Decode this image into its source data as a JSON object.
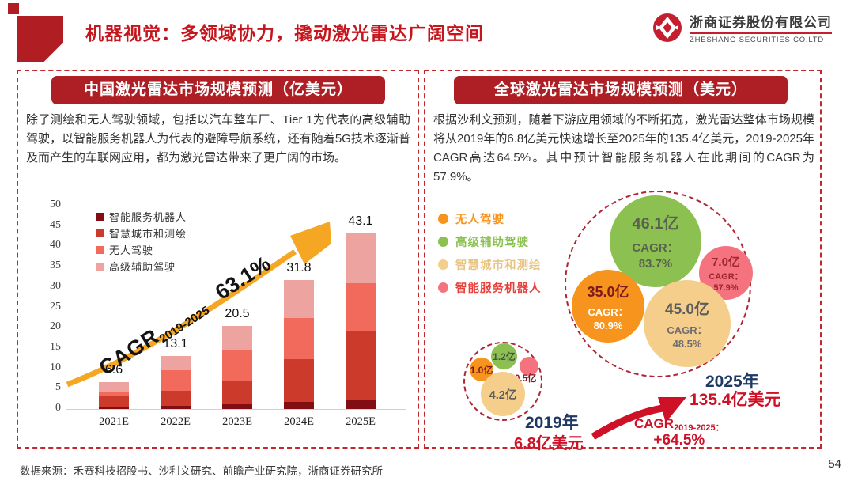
{
  "header": {
    "title": "机器视觉：多领域协力，撬动激光雷达广阔空间",
    "logo": {
      "company_cn": "浙商证券股份有限公司",
      "company_en": "ZHESHANG SECURITIES CO.LTD"
    }
  },
  "left_panel": {
    "title": "中国激光雷达市场规模预测（亿美元）",
    "description": "除了测绘和无人驾驶领域，包括以汽车整车厂、Tier 1为代表的高级辅助驾驶，以智能服务机器人为代表的避障导航系统，还有随着5G技术逐渐普及而产生的车联网应用，都为激光雷达带来了更广阔的市场。"
  },
  "right_panel": {
    "title": "全球激光雷达市场规模预测（美元）",
    "description": "根据沙利文预测，随着下游应用领域的不断拓宽，激光雷达整体市场规模将从2019年的6.8亿美元快速增长至2025年的135.4亿美元，2019-2025年CAGR高达64.5%。其中预计智能服务机器人在此期间的CAGR为57.9%。"
  },
  "chart_data": [
    {
      "type": "bar",
      "stacked": true,
      "title": "中国激光雷达市场规模预测（亿美元）",
      "categories": [
        "2021E",
        "2022E",
        "2023E",
        "2024E",
        "2025E"
      ],
      "series": [
        {
          "name": "智能服务机器人",
          "color": "#820D12",
          "values": [
            0.5,
            0.7,
            1.1,
            1.8,
            2.3
          ]
        },
        {
          "name": "智慧城市和测绘",
          "color": "#CB3A2B",
          "values": [
            2.6,
            3.7,
            5.7,
            10.5,
            17.0
          ]
        },
        {
          "name": "无人驾驶",
          "color": "#F26A5C",
          "values": [
            1.2,
            5.1,
            7.6,
            10.1,
            11.6
          ]
        },
        {
          "name": "高级辅助驾驶",
          "color": "#EDA3A0",
          "values": [
            2.3,
            3.6,
            6.1,
            9.4,
            12.2
          ]
        }
      ],
      "totals": [
        6.6,
        13.1,
        20.5,
        31.8,
        43.1
      ],
      "ylim": [
        0,
        50
      ],
      "ytick_step": 5,
      "legend_position": "upper-left",
      "grid": false,
      "annotation": {
        "label": "CAGR",
        "sub": "2019-2025",
        "value": "63.1%",
        "arrow_color": "#F5A623"
      }
    },
    {
      "type": "bubble",
      "title": "全球激光雷达市场规模预测（美元）",
      "legend": [
        {
          "label": "无人驾驶",
          "color": "#F7941D",
          "text_color": "#F7941D"
        },
        {
          "label": "高级辅助驾驶",
          "color": "#8CC152",
          "text_color": "#8CC152"
        },
        {
          "label": "智慧城市和测绘",
          "color": "#F3CE8D",
          "text_color": "#E9C583"
        },
        {
          "label": "智能服务机器人",
          "color": "#F4737E",
          "text_color": "#E8403B"
        }
      ],
      "cluster_2019": {
        "year": "2019年",
        "total": "6.8亿美元",
        "bubbles": [
          {
            "segment": "无人驾驶",
            "value": "1.0亿",
            "color": "#F7941D",
            "value_color": "#7E1A1E"
          },
          {
            "segment": "高级辅助驾驶",
            "value": "1.2亿",
            "color": "#8CC152",
            "value_color": "#4A5244"
          },
          {
            "segment": "智能服务机器人",
            "value": "0.5亿",
            "color": "#F4737E",
            "value_color": "#7E1A1E"
          },
          {
            "segment": "智慧城市和测绘",
            "value": "4.2亿",
            "color": "#F6CE8B",
            "value_color": "#5C5C5C"
          }
        ]
      },
      "cluster_2025": {
        "year": "2025年",
        "total": "135.4亿美元",
        "bubbles": [
          {
            "segment": "高级辅助驾驶",
            "value": "46.1亿",
            "cagr_label": "CAGR：",
            "cagr_value": "83.7%",
            "color": "#8CC152",
            "value_color": "#59624F",
            "cagr_color": "#59624F"
          },
          {
            "segment": "无人驾驶",
            "value": "35.0亿",
            "cagr_label": "CAGR：",
            "cagr_value": "80.9%",
            "color": "#F7941D",
            "value_color": "#7E1A1E",
            "cagr_color": "#FFFFFF"
          },
          {
            "segment": "智能服务机器人",
            "value": "7.0亿",
            "cagr_label": "CAGR：",
            "cagr_value": "57.9%",
            "color": "#F4737E",
            "value_color": "#9E262E",
            "cagr_color": "#9E262E"
          },
          {
            "segment": "智慧城市和测绘",
            "value": "45.0亿",
            "cagr_label": "CAGR：",
            "cagr_value": "48.5%",
            "color": "#F6CE8B",
            "value_color": "#5C5C5C",
            "cagr_color": "#6E6E6E"
          }
        ]
      },
      "cagr_annotation": {
        "label": "CAGR",
        "sub": "2019-2025：",
        "value": "+64.5%"
      }
    }
  ],
  "footer": {
    "source": "数据来源：禾赛科技招股书、沙利文研究、前瞻产业研究院，浙商证券研究所",
    "page_number": "54"
  },
  "colors": {
    "primary_red": "#C5161D",
    "panel_header_bg": "#AD1F24",
    "dashed_border": "#C1272D",
    "year_blue": "#1F3864",
    "value_red": "#CE1126",
    "arrow_orange": "#F5A623",
    "arrow_red": "#CE1126"
  }
}
